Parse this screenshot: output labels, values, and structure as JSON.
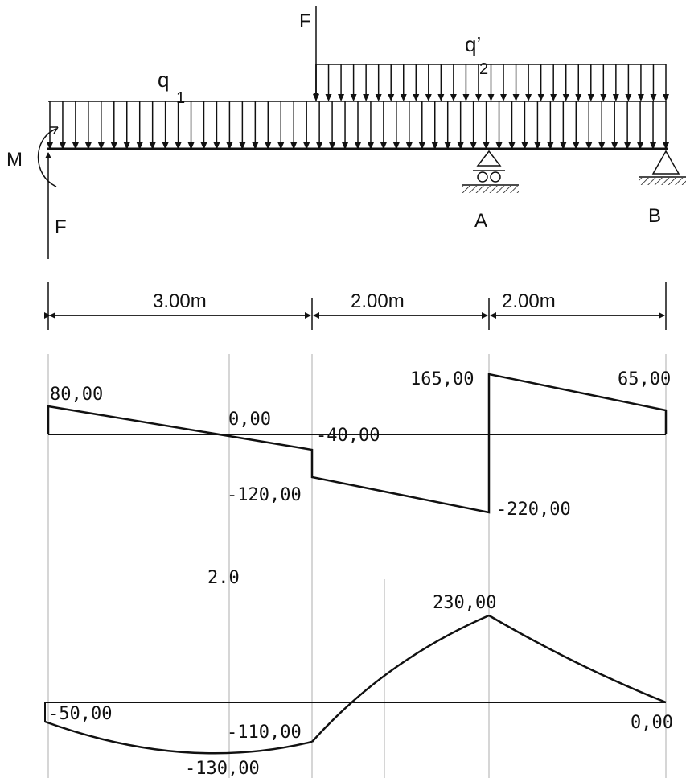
{
  "loads": {
    "force_top": "F",
    "force_bottom": "F",
    "moment": "M",
    "q1_letter": "q",
    "q1_subscript": "1",
    "q2_letter": "q’",
    "q2_subscript": "2"
  },
  "supports": {
    "a_label": "A",
    "b_label": "B"
  },
  "dimensions": {
    "span1": "3.00m",
    "span2": "2.00m",
    "span3": "2.00m"
  },
  "shear_diagram": {
    "values": {
      "v_start": "80,00",
      "v_zero": "0,00",
      "v_mid": "-40,00",
      "v_before_f": "-120,00",
      "v_after_a": "165,00",
      "v_before_a": "-220,00",
      "v_end": "65,00"
    }
  },
  "moment_diagram": {
    "stray_label": "2.0",
    "values": {
      "m_peak": "230,00",
      "m_start": "-50,00",
      "m_at_f": "-110,00",
      "m_min": "-130,00",
      "m_end": "0,00"
    }
  },
  "colors": {
    "line": "#111111",
    "grid": "#c8c8c8"
  }
}
